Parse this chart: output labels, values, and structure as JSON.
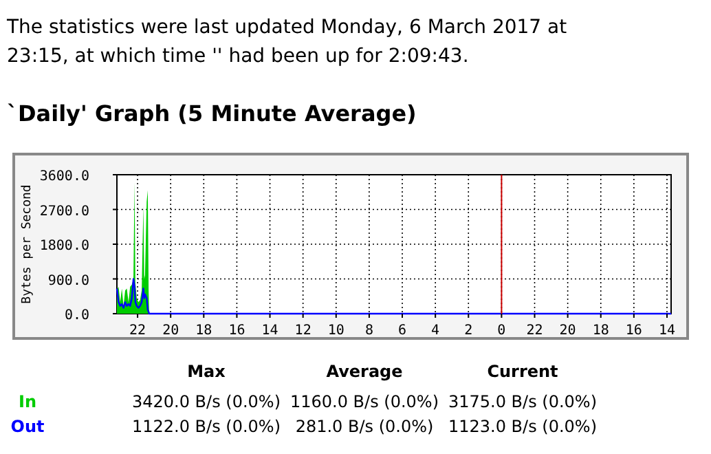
{
  "chart_data": {
    "type": "area",
    "title": "`Daily' Graph (5 Minute Average)",
    "subtitle": "The statistics were last updated Monday, 6 March 2017 at 23:15, at which time '' had been up for 2:09:43.",
    "ylabel": "Bytes per Second",
    "xlim": [
      "2017-03-06T23:15",
      "2017-03-05T13:45"
    ],
    "xticks": [
      {
        "value": "2017-03-06T22:00",
        "label": "22"
      },
      {
        "value": "2017-03-06T20:00",
        "label": "20"
      },
      {
        "value": "2017-03-06T18:00",
        "label": "18"
      },
      {
        "value": "2017-03-06T16:00",
        "label": "16"
      },
      {
        "value": "2017-03-06T14:00",
        "label": "14"
      },
      {
        "value": "2017-03-06T12:00",
        "label": "12"
      },
      {
        "value": "2017-03-06T10:00",
        "label": "10"
      },
      {
        "value": "2017-03-06T08:00",
        "label": "8"
      },
      {
        "value": "2017-03-06T06:00",
        "label": "6"
      },
      {
        "value": "2017-03-06T04:00",
        "label": "4"
      },
      {
        "value": "2017-03-06T02:00",
        "label": "2"
      },
      {
        "value": "2017-03-06T00:00",
        "label": "0"
      },
      {
        "value": "2017-03-05T22:00",
        "label": "22"
      },
      {
        "value": "2017-03-05T20:00",
        "label": "20"
      },
      {
        "value": "2017-03-05T18:00",
        "label": "18"
      },
      {
        "value": "2017-03-05T16:00",
        "label": "16"
      },
      {
        "value": "2017-03-05T14:00",
        "label": "14"
      }
    ],
    "ylim": [
      0,
      3600
    ],
    "yticks": [
      {
        "value": 0,
        "label": "0.0"
      },
      {
        "value": 900,
        "label": "900.0"
      },
      {
        "value": 1800,
        "label": "1800.0"
      },
      {
        "value": 2700,
        "label": "2700.0"
      },
      {
        "value": 3600,
        "label": "3600.0"
      }
    ],
    "grid": true,
    "ref_lines": [
      {
        "axis": "x",
        "value": "2017-03-06T00:00",
        "color": "#cc0000"
      }
    ],
    "x": [
      "2017-03-06T23:15",
      "2017-03-06T23:09",
      "2017-03-06T23:03",
      "2017-03-06T22:57",
      "2017-03-06T22:51",
      "2017-03-06T22:45",
      "2017-03-06T22:39",
      "2017-03-06T22:33",
      "2017-03-06T22:27",
      "2017-03-06T22:21",
      "2017-03-06T22:15",
      "2017-03-06T22:11",
      "2017-03-06T22:08",
      "2017-03-06T22:03",
      "2017-03-06T21:57",
      "2017-03-06T21:51",
      "2017-03-06T21:45",
      "2017-03-06T21:39",
      "2017-03-06T21:36",
      "2017-03-06T21:33",
      "2017-03-06T21:27",
      "2017-03-06T21:23",
      "2017-03-06T21:20",
      "2017-03-06T21:18",
      "2017-03-05T13:45"
    ],
    "series": [
      {
        "name": "In",
        "color": "#00cc00",
        "values": [
          600,
          700,
          300,
          650,
          200,
          600,
          650,
          300,
          700,
          750,
          900,
          3400,
          800,
          400,
          300,
          350,
          600,
          2800,
          900,
          1000,
          2900,
          3200,
          600,
          0,
          0
        ]
      },
      {
        "name": "Out",
        "type": "line",
        "color": "#0000ff",
        "values": [
          650,
          300,
          200,
          250,
          150,
          300,
          200,
          250,
          200,
          400,
          900,
          700,
          300,
          200,
          150,
          200,
          300,
          650,
          400,
          500,
          400,
          100,
          50,
          0,
          0
        ]
      }
    ],
    "annotations": [
      "Max",
      "Average",
      "Current",
      "3420.0 B/s (0.0%)",
      "1160.0 B/s (0.0%)",
      "3175.0 B/s (0.0%)",
      "1122.0 B/s (0.0%)",
      "281.0 B/s (0.0%)",
      "1123.0 B/s (0.0%)"
    ]
  }
}
